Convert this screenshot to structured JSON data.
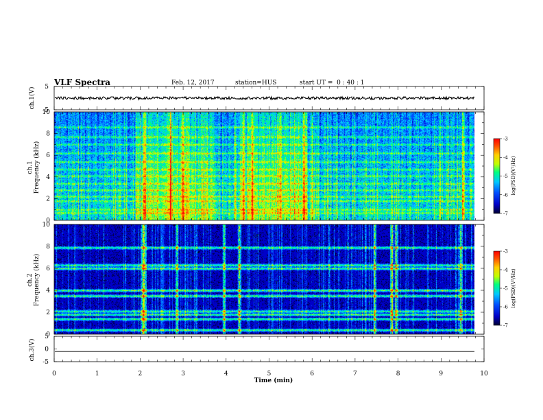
{
  "header": {
    "title": "VLF Spectra",
    "date": "Feb. 12, 2017",
    "station": "station=HUS",
    "start": "start UT =  0 : 40 : 1"
  },
  "chart_data": [
    {
      "type": "line",
      "panel": "ch1-waveform",
      "ylabel": "ch.1(V)",
      "ylim": [
        -5,
        5
      ],
      "yticks": [
        "5",
        "-5"
      ],
      "xlim": [
        0,
        10
      ],
      "description_level": 0
    },
    {
      "type": "heatmap",
      "panel": "ch1-spectrogram",
      "ylabel": "ch.1\nFrequency (kHz)",
      "ylim": [
        0,
        10
      ],
      "yticks": [
        "0",
        "2",
        "4",
        "6",
        "8",
        "10"
      ],
      "xlim": [
        0,
        10
      ],
      "colorbar": {
        "label": "log(PSD)(V²/Hz)",
        "range": [
          -7,
          -3
        ],
        "ticks": [
          "-3",
          "-4",
          "-5",
          "-6",
          "-7"
        ]
      },
      "bright_bursts_min": [
        4.2,
        4.4,
        4.6,
        2.1,
        2.7,
        3.0,
        5.8,
        6.0,
        9.5
      ],
      "horizontal_lines_khz": [
        0.7,
        1.0,
        1.8,
        2.2,
        2.8,
        3.4,
        4.1,
        4.7,
        5.4,
        6.2,
        7.0,
        7.7,
        8.6
      ]
    },
    {
      "type": "heatmap",
      "panel": "ch2-spectrogram",
      "ylabel": "ch.2\nFrequency (kHz)",
      "ylim": [
        0,
        10
      ],
      "yticks": [
        "0",
        "2",
        "4",
        "6",
        "8",
        "10"
      ],
      "xlim": [
        0,
        10
      ],
      "colorbar": {
        "label": "log(PSD)(V²/Hz)",
        "range": [
          -7,
          -3
        ],
        "ticks": [
          "-3",
          "-4",
          "-5",
          "-6",
          "-7"
        ]
      },
      "bands_khz": [
        0.4,
        1.4,
        1.8,
        2.1,
        3.5,
        4.0,
        6.0,
        6.3,
        7.9
      ],
      "spikes_min": [
        2.05,
        2.1,
        2.85,
        3.95,
        4.3,
        7.45,
        7.85,
        7.95,
        9.45
      ]
    },
    {
      "type": "line",
      "panel": "ch3-waveform",
      "ylabel": "ch.3(V)",
      "ylim": [
        -5,
        5
      ],
      "yticks": [
        "5",
        "0",
        "-5"
      ],
      "xlim": [
        0,
        10
      ],
      "description_level": -1
    }
  ],
  "xaxis": {
    "label": "Time (min)",
    "ticks": [
      "0",
      "1",
      "2",
      "3",
      "4",
      "5",
      "6",
      "7",
      "8",
      "9",
      "10"
    ]
  },
  "colors": {
    "scale": [
      "#000030",
      "#0000c8",
      "#0050ff",
      "#00c8ff",
      "#00ff80",
      "#c0ff00",
      "#ffd000",
      "#ff5000",
      "#ff0000"
    ]
  }
}
